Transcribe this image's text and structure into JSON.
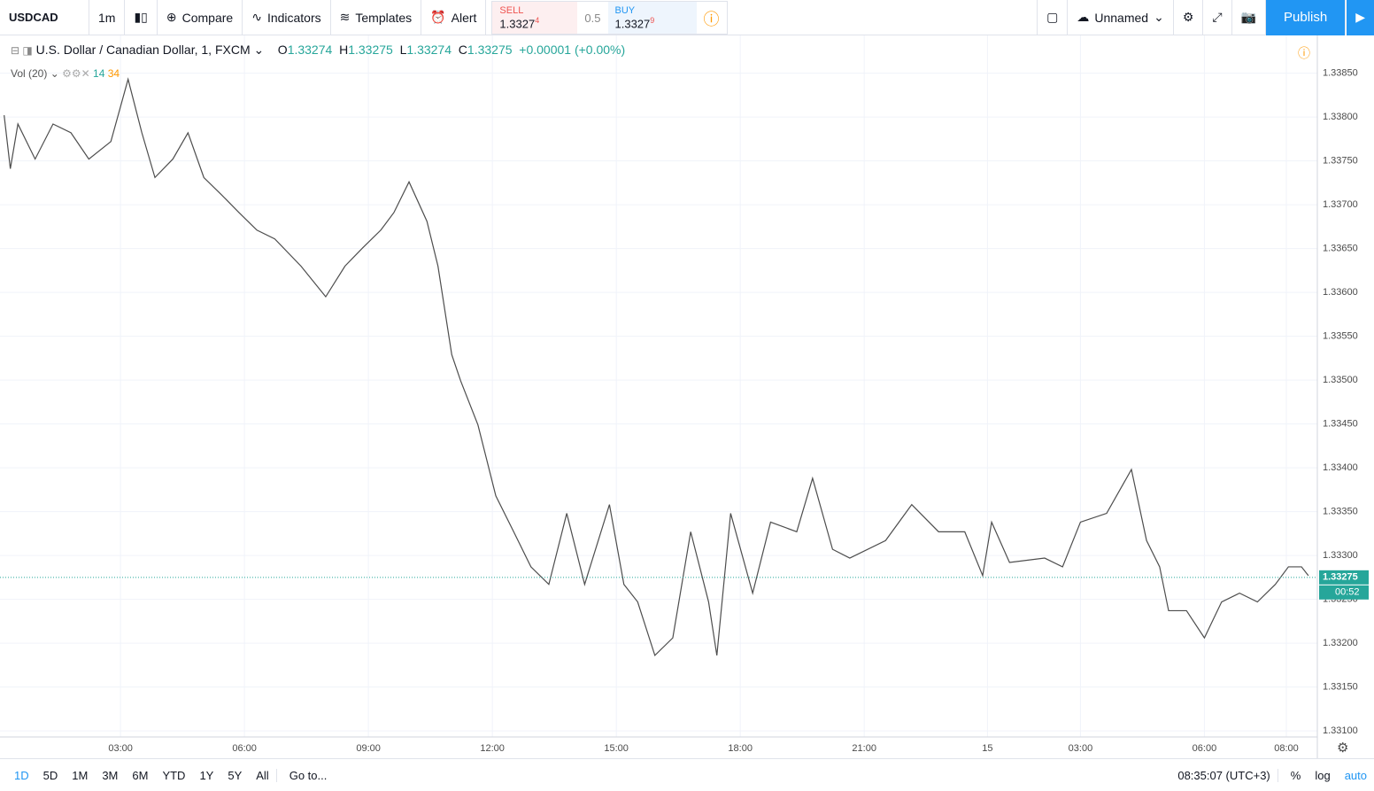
{
  "toolbar": {
    "symbol": "USDCAD",
    "interval": "1m",
    "compare": "Compare",
    "indicators": "Indicators",
    "templates": "Templates",
    "alert": "Alert",
    "sell": {
      "label": "SELL",
      "price": "1.3327",
      "pip": "4"
    },
    "spread": "0.5",
    "buy": {
      "label": "BUY",
      "price": "1.3327",
      "pip": "9"
    },
    "layout": "Unnamed",
    "publish": "Publish"
  },
  "legend": {
    "name": "U.S. Dollar / Canadian Dollar, 1, FXCM",
    "o_label": "O",
    "o": "1.33274",
    "h_label": "H",
    "h": "1.33275",
    "l_label": "L",
    "l": "1.33274",
    "c_label": "C",
    "c": "1.33275",
    "change": "+0.00001 (+0.00%)",
    "volume": "Vol (20)",
    "vol_a": "14",
    "vol_b": "34"
  },
  "chart_data": {
    "type": "line",
    "series": [
      {
        "name": "USDCAD",
        "color": "#4d4d4d",
        "x": [
          11,
          20,
          31,
          56,
          82,
          108,
          134,
          166,
          191,
          211,
          230,
          256,
          278,
          301,
          327,
          352,
          378,
          404,
          442,
          478,
          506,
          532,
          558,
          577,
          599,
          625,
          641,
          661,
          674,
          699,
          725,
          751,
          776,
          802,
          828,
          854,
          890,
          911,
          931,
          956,
          982,
          1008,
          1034,
          1046,
          1066,
          1098,
          1124,
          1162,
          1185,
          1214,
          1239,
          1291,
          1329,
          1368,
          1406,
          1432,
          1445,
          1471,
          1522,
          1548,
          1574,
          1612,
          1648,
          1670,
          1689,
          1702,
          1728,
          1754,
          1779,
          1805,
          1831,
          1857,
          1876,
          1895,
          1905
        ],
        "values": [
          1.33802,
          1.33741,
          1.33792,
          1.33752,
          1.33792,
          1.33782,
          1.33752,
          1.33772,
          1.33843,
          1.33782,
          1.33731,
          1.33752,
          1.33782,
          1.33731,
          1.33711,
          1.33691,
          1.33671,
          1.33661,
          1.3363,
          1.33595,
          1.3363,
          1.33651,
          1.33671,
          1.33691,
          1.33726,
          1.33681,
          1.3363,
          1.33529,
          1.33499,
          1.33449,
          1.33368,
          1.33327,
          1.33287,
          1.33267,
          1.33348,
          1.33267,
          1.33358,
          1.33267,
          1.33247,
          1.33186,
          1.33206,
          1.33327,
          1.33247,
          1.33186,
          1.33348,
          1.33257,
          1.33338,
          1.33327,
          1.33388,
          1.33307,
          1.33297,
          1.33317,
          1.33358,
          1.33327,
          1.33327,
          1.33277,
          1.33338,
          1.33292,
          1.33297,
          1.33287,
          1.33338,
          1.33348,
          1.33398,
          1.33317,
          1.33287,
          1.33237,
          1.33237,
          1.33206,
          1.33247,
          1.33257,
          1.33247,
          1.33267,
          1.33287,
          1.33287,
          1.33277
        ]
      }
    ],
    "xlim": [
      5,
      1918
    ],
    "xticks": [
      {
        "value": 180,
        "label": "03:00"
      },
      {
        "value": 360,
        "label": "06:00"
      },
      {
        "value": 540,
        "label": "09:00"
      },
      {
        "value": 720,
        "label": "12:00"
      },
      {
        "value": 900,
        "label": "15:00"
      },
      {
        "value": 1080,
        "label": "18:00"
      },
      {
        "value": 1260,
        "label": "21:00"
      },
      {
        "value": 1439,
        "label": "15"
      },
      {
        "value": 1574,
        "label": "03:00"
      },
      {
        "value": 1754,
        "label": "06:00"
      },
      {
        "value": 1873,
        "label": "08:00"
      }
    ],
    "ylim": [
      1.33093,
      1.33893
    ],
    "yticks": [
      {
        "value": 1.331,
        "label": "1.33100"
      },
      {
        "value": 1.3315,
        "label": "1.33150"
      },
      {
        "value": 1.332,
        "label": "1.33200"
      },
      {
        "value": 1.3325,
        "label": "1.33250"
      },
      {
        "value": 1.333,
        "label": "1.33300"
      },
      {
        "value": 1.3335,
        "label": "1.33350"
      },
      {
        "value": 1.334,
        "label": "1.33400"
      },
      {
        "value": 1.3345,
        "label": "1.33450"
      },
      {
        "value": 1.335,
        "label": "1.33500"
      },
      {
        "value": 1.3355,
        "label": "1.33550"
      },
      {
        "value": 1.336,
        "label": "1.33600"
      },
      {
        "value": 1.3365,
        "label": "1.33650"
      },
      {
        "value": 1.337,
        "label": "1.33700"
      },
      {
        "value": 1.3375,
        "label": "1.33750"
      },
      {
        "value": 1.338,
        "label": "1.33800"
      },
      {
        "value": 1.3385,
        "label": "1.33850"
      }
    ],
    "last_price": {
      "value": 1.33275,
      "label": "1.33275"
    },
    "countdown": "00:52",
    "grid": true
  },
  "bottom_bar": {
    "ranges": [
      "1D",
      "5D",
      "1M",
      "3M",
      "6M",
      "YTD",
      "1Y",
      "5Y",
      "All"
    ],
    "goto": "Go to...",
    "clock": "08:35:07 (UTC+3)",
    "percent": "%",
    "log": "log",
    "auto": "auto"
  }
}
